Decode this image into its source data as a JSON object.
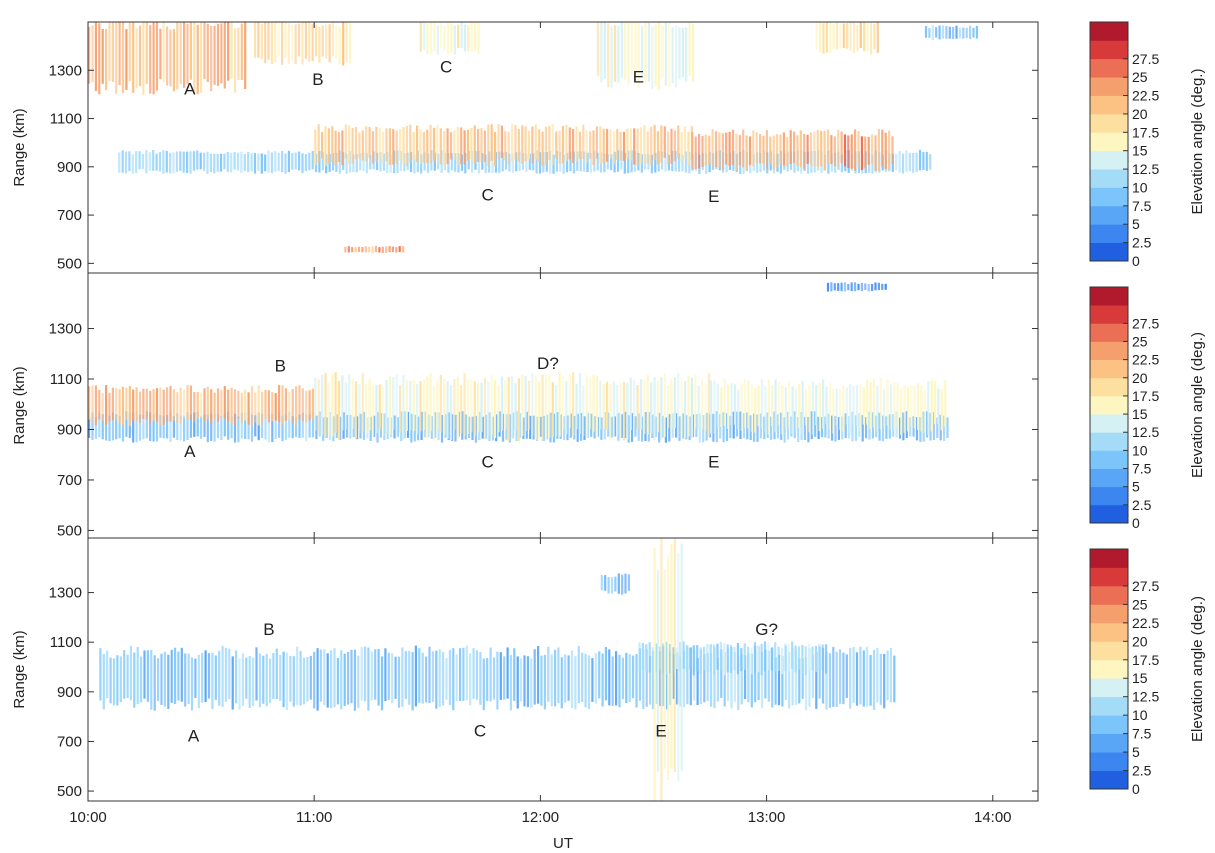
{
  "figure": {
    "x_axis_title": "UT",
    "x_ticks": [
      {
        "value": 0,
        "label": "10:00"
      },
      {
        "value": 60,
        "label": "11:00"
      },
      {
        "value": 120,
        "label": "12:00"
      },
      {
        "value": 180,
        "label": "13:00"
      },
      {
        "value": 240,
        "label": "14:00"
      }
    ],
    "y_axis_title": "Range (km)",
    "colorbar_title": "Elevation angle (deg.)",
    "colorbar_ticks": [
      "0",
      "2.5",
      "5",
      "7.5",
      "10",
      "12.5",
      "15",
      "17.5",
      "20",
      "22.5",
      "25",
      "27.5"
    ],
    "colorbar_colors": [
      "#1f5fe0",
      "#3c86f0",
      "#5aa6f6",
      "#7cc5fa",
      "#a4dcf8",
      "#d6f1f4",
      "#fdf6c0",
      "#fde0a0",
      "#fbc283",
      "#f59f6d",
      "#ea6f55",
      "#d83a3a",
      "#b01a2c"
    ]
  },
  "chart_data": [
    {
      "type": "heatmap",
      "panel": "top",
      "x_unit": "minutes after 10:00 UT",
      "xlim": [
        0,
        252
      ],
      "ylabel": "Range (km)",
      "ylim": [
        460,
        1500
      ],
      "y_ticks": [
        500,
        700,
        900,
        1100,
        1300
      ],
      "colorbar_label": "Elevation angle (deg.)",
      "clim": [
        0,
        27.5
      ],
      "annotations": [
        {
          "text": "A",
          "x": 27,
          "y": 1200
        },
        {
          "text": "B",
          "x": 61,
          "y": 1240
        },
        {
          "text": "C",
          "x": 95,
          "y": 1290
        },
        {
          "text": "E",
          "x": 146,
          "y": 1250
        },
        {
          "text": "C",
          "x": 106,
          "y": 760
        },
        {
          "text": "E",
          "x": 166,
          "y": 755
        }
      ],
      "echo_regions": [
        {
          "x0": 0,
          "x1": 42,
          "y_low": 1230,
          "y_high": 1500,
          "elevation": 22
        },
        {
          "x0": 44,
          "x1": 70,
          "y_low": 1340,
          "y_high": 1500,
          "elevation": 19
        },
        {
          "x0": 88,
          "x1": 104,
          "y_low": 1380,
          "y_high": 1500,
          "elevation": 16
        },
        {
          "x0": 135,
          "x1": 161,
          "y_low": 1250,
          "y_high": 1500,
          "elevation": 16
        },
        {
          "x0": 193,
          "x1": 210,
          "y_low": 1380,
          "y_high": 1500,
          "elevation": 18
        },
        {
          "x0": 222,
          "x1": 236,
          "y_low": 1430,
          "y_high": 1480,
          "elevation": 9
        },
        {
          "x0": 8,
          "x1": 224,
          "y_low": 880,
          "y_high": 960,
          "elevation": 10
        },
        {
          "x0": 60,
          "x1": 160,
          "y_low": 920,
          "y_high": 1060,
          "elevation": 21
        },
        {
          "x0": 160,
          "x1": 214,
          "y_low": 900,
          "y_high": 1040,
          "elevation": 23
        },
        {
          "x0": 68,
          "x1": 84,
          "y_low": 545,
          "y_high": 570,
          "elevation": 24
        }
      ]
    },
    {
      "type": "heatmap",
      "panel": "middle",
      "x_unit": "minutes after 10:00 UT",
      "xlim": [
        0,
        252
      ],
      "ylabel": "Range (km)",
      "ylim": [
        470,
        1520
      ],
      "y_ticks": [
        500,
        700,
        900,
        1100,
        1300
      ],
      "colorbar_label": "Elevation angle (deg.)",
      "clim": [
        0,
        27.5
      ],
      "annotations": [
        {
          "text": "B",
          "x": 51,
          "y": 1130
        },
        {
          "text": "D?",
          "x": 122,
          "y": 1140
        },
        {
          "text": "A",
          "x": 27,
          "y": 790
        },
        {
          "text": "C",
          "x": 106,
          "y": 750
        },
        {
          "text": "E",
          "x": 166,
          "y": 750
        }
      ],
      "echo_regions": [
        {
          "x0": 0,
          "x1": 228,
          "y_low": 860,
          "y_high": 960,
          "elevation": 8
        },
        {
          "x0": 0,
          "x1": 60,
          "y_low": 930,
          "y_high": 1060,
          "elevation": 22
        },
        {
          "x0": 60,
          "x1": 165,
          "y_low": 880,
          "y_high": 1100,
          "elevation": 16
        },
        {
          "x0": 165,
          "x1": 228,
          "y_low": 900,
          "y_high": 1080,
          "elevation": 15
        },
        {
          "x0": 196,
          "x1": 212,
          "y_low": 1450,
          "y_high": 1480,
          "elevation": 4
        }
      ]
    },
    {
      "type": "heatmap",
      "panel": "bottom",
      "x_unit": "minutes after 10:00 UT",
      "xlim": [
        0,
        252
      ],
      "ylabel": "Range (km)",
      "ylim": [
        460,
        1520
      ],
      "y_ticks": [
        500,
        700,
        900,
        1100,
        1300
      ],
      "colorbar_label": "Elevation angle (deg.)",
      "clim": [
        0,
        27.5
      ],
      "annotations": [
        {
          "text": "B",
          "x": 48,
          "y": 1130
        },
        {
          "text": "G?",
          "x": 180,
          "y": 1130
        },
        {
          "text": "A",
          "x": 28,
          "y": 700
        },
        {
          "text": "C",
          "x": 104,
          "y": 720
        },
        {
          "text": "E",
          "x": 152,
          "y": 720
        }
      ],
      "echo_regions": [
        {
          "x0": 3,
          "x1": 214,
          "y_low": 850,
          "y_high": 1060,
          "elevation": 9
        },
        {
          "x0": 146,
          "x1": 196,
          "y_low": 980,
          "y_high": 1090,
          "elevation": 11
        },
        {
          "x0": 136,
          "x1": 144,
          "y_low": 1300,
          "y_high": 1370,
          "elevation": 8
        },
        {
          "x0": 150,
          "x1": 158,
          "y_low": 460,
          "y_high": 1520,
          "elevation": 16
        }
      ]
    }
  ]
}
